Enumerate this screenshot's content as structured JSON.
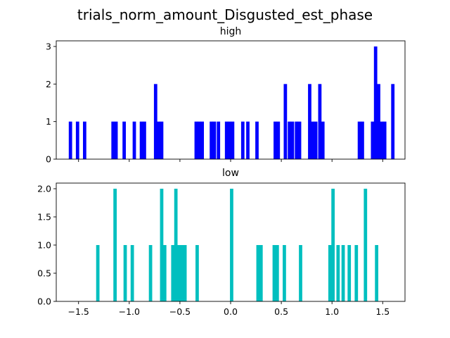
{
  "chart_data": {
    "type": "bar",
    "title": "trials_norm_amount_Disgusted_est_phase",
    "xlim": [
      -1.72,
      1.72
    ],
    "bar_width": 0.033,
    "grid": false,
    "shared_x": true,
    "subplots": [
      {
        "title": "high",
        "color": "#0000ff",
        "ylim": [
          0,
          3.15
        ],
        "yticks": [
          0,
          1,
          2,
          3
        ],
        "show_xtick_labels": false,
        "bars": [
          {
            "x": -1.58,
            "y": 1
          },
          {
            "x": -1.51,
            "y": 1
          },
          {
            "x": -1.44,
            "y": 1
          },
          {
            "x": -1.16,
            "y": 1
          },
          {
            "x": -1.13,
            "y": 1
          },
          {
            "x": -1.05,
            "y": 1
          },
          {
            "x": -0.95,
            "y": 1
          },
          {
            "x": -0.88,
            "y": 1
          },
          {
            "x": -0.85,
            "y": 1
          },
          {
            "x": -0.74,
            "y": 2
          },
          {
            "x": -0.71,
            "y": 1
          },
          {
            "x": -0.68,
            "y": 1
          },
          {
            "x": -0.34,
            "y": 1
          },
          {
            "x": -0.31,
            "y": 1
          },
          {
            "x": -0.28,
            "y": 1
          },
          {
            "x": -0.19,
            "y": 1
          },
          {
            "x": -0.16,
            "y": 1
          },
          {
            "x": -0.12,
            "y": 1
          },
          {
            "x": -0.04,
            "y": 1
          },
          {
            "x": -0.01,
            "y": 1
          },
          {
            "x": 0.02,
            "y": 1
          },
          {
            "x": 0.12,
            "y": 1
          },
          {
            "x": 0.17,
            "y": 1
          },
          {
            "x": 0.26,
            "y": 1
          },
          {
            "x": 0.44,
            "y": 1
          },
          {
            "x": 0.47,
            "y": 1
          },
          {
            "x": 0.54,
            "y": 2
          },
          {
            "x": 0.58,
            "y": 1
          },
          {
            "x": 0.61,
            "y": 1
          },
          {
            "x": 0.65,
            "y": 1
          },
          {
            "x": 0.68,
            "y": 1
          },
          {
            "x": 0.78,
            "y": 2
          },
          {
            "x": 0.81,
            "y": 1
          },
          {
            "x": 0.84,
            "y": 1
          },
          {
            "x": 0.88,
            "y": 2
          },
          {
            "x": 0.91,
            "y": 1
          },
          {
            "x": 1.27,
            "y": 1
          },
          {
            "x": 1.3,
            "y": 1
          },
          {
            "x": 1.4,
            "y": 1
          },
          {
            "x": 1.43,
            "y": 3
          },
          {
            "x": 1.46,
            "y": 2
          },
          {
            "x": 1.49,
            "y": 1
          },
          {
            "x": 1.52,
            "y": 1
          },
          {
            "x": 1.6,
            "y": 2
          }
        ]
      },
      {
        "title": "low",
        "color": "#00bfbf",
        "ylim": [
          0,
          2.1
        ],
        "yticks": [
          "0.0",
          "0.5",
          "1.0",
          "1.5",
          "2.0"
        ],
        "xticks": [
          "−1.5",
          "−1.0",
          "−0.5",
          "0.0",
          "0.5",
          "1.0",
          "1.5"
        ],
        "show_xtick_labels": true,
        "bars": [
          {
            "x": -1.31,
            "y": 1
          },
          {
            "x": -1.14,
            "y": 2
          },
          {
            "x": -1.04,
            "y": 1
          },
          {
            "x": -0.97,
            "y": 1
          },
          {
            "x": -0.79,
            "y": 1
          },
          {
            "x": -0.68,
            "y": 2
          },
          {
            "x": -0.65,
            "y": 1
          },
          {
            "x": -0.57,
            "y": 1
          },
          {
            "x": -0.54,
            "y": 2
          },
          {
            "x": -0.51,
            "y": 1
          },
          {
            "x": -0.48,
            "y": 1
          },
          {
            "x": -0.45,
            "y": 1
          },
          {
            "x": -0.33,
            "y": 1
          },
          {
            "x": 0.01,
            "y": 2
          },
          {
            "x": 0.27,
            "y": 1
          },
          {
            "x": 0.3,
            "y": 1
          },
          {
            "x": 0.43,
            "y": 1
          },
          {
            "x": 0.46,
            "y": 1
          },
          {
            "x": 0.53,
            "y": 1
          },
          {
            "x": 0.69,
            "y": 1
          },
          {
            "x": 0.98,
            "y": 1
          },
          {
            "x": 1.01,
            "y": 2
          },
          {
            "x": 1.06,
            "y": 1
          },
          {
            "x": 1.11,
            "y": 1
          },
          {
            "x": 1.17,
            "y": 1
          },
          {
            "x": 1.24,
            "y": 1
          },
          {
            "x": 1.33,
            "y": 2
          },
          {
            "x": 1.44,
            "y": 1
          }
        ]
      }
    ]
  }
}
